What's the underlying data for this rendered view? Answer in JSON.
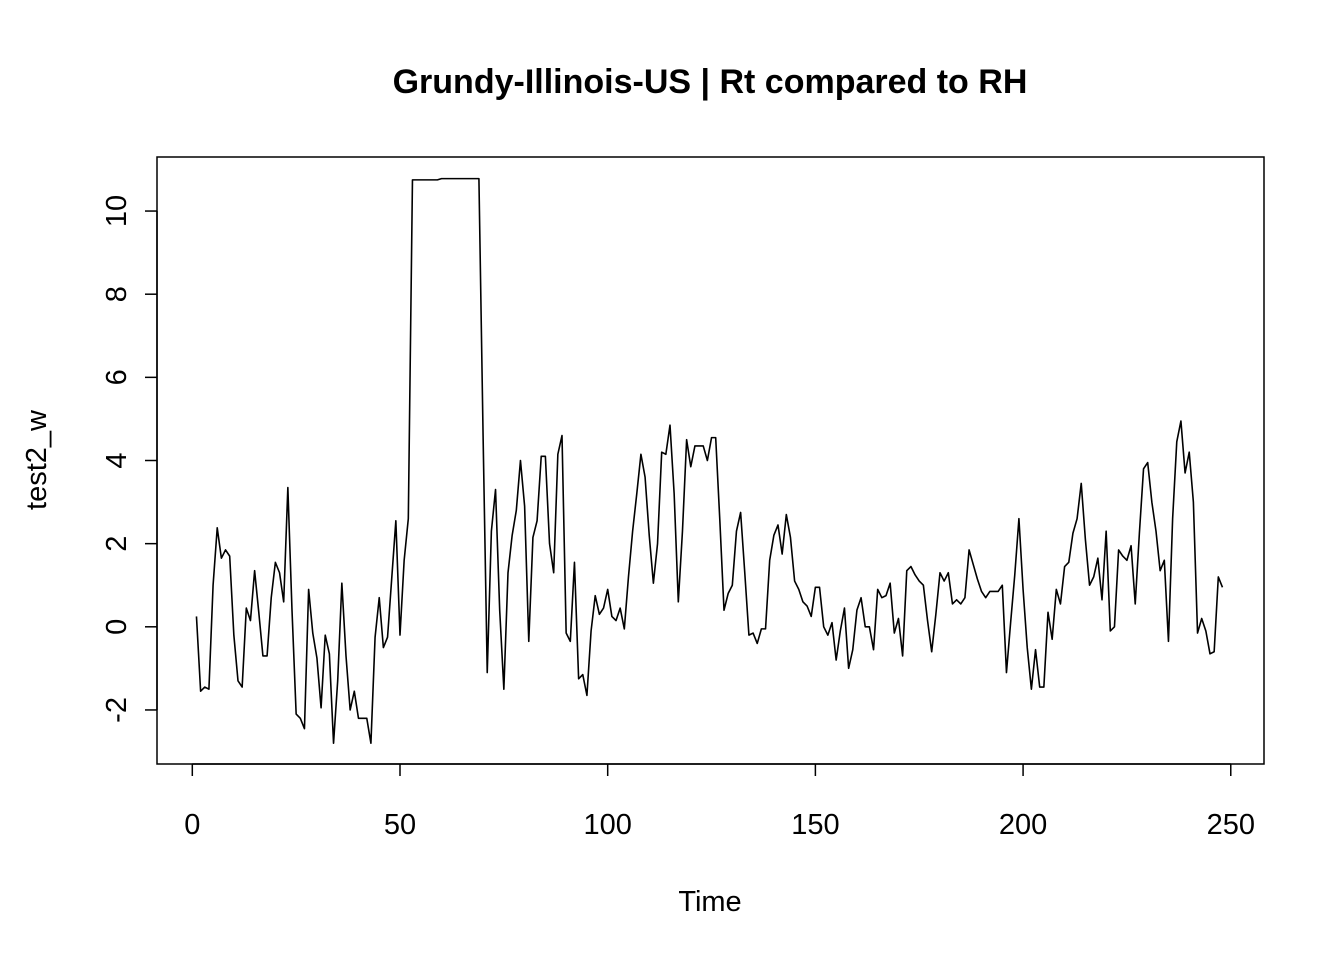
{
  "chart_data": {
    "type": "line",
    "title": "Grundy-Illinois-US | Rt compared to RH",
    "xlabel": "Time",
    "ylabel": "test2_w",
    "xlim": [
      -8.5,
      258
    ],
    "ylim": [
      -3.3,
      11.3
    ],
    "x_ticks": [
      0,
      50,
      100,
      150,
      200,
      250
    ],
    "y_ticks": [
      -2,
      0,
      2,
      4,
      6,
      8,
      10
    ],
    "grid": false,
    "series": [
      {
        "color": "#000000",
        "x_start": 1,
        "values": [
          0.25,
          -1.55,
          -1.45,
          -1.5,
          1.0,
          2.38,
          1.65,
          1.85,
          1.7,
          -0.2,
          -1.3,
          -1.45,
          0.45,
          0.15,
          1.35,
          0.35,
          -0.7,
          -0.7,
          0.7,
          1.55,
          1.3,
          0.6,
          3.35,
          0.4,
          -2.1,
          -2.2,
          -2.45,
          0.9,
          -0.15,
          -0.75,
          -1.95,
          -0.2,
          -0.65,
          -2.8,
          -1.3,
          1.05,
          -0.7,
          -2.0,
          -1.55,
          -2.2,
          -2.2,
          -2.2,
          -2.8,
          -0.25,
          0.7,
          -0.5,
          -0.25,
          1.15,
          2.55,
          -0.2,
          1.6,
          2.6,
          10.75,
          10.75,
          10.75,
          10.75,
          10.75,
          10.75,
          10.75,
          10.78,
          10.78,
          10.78,
          10.78,
          10.78,
          10.78,
          10.78,
          10.78,
          10.78,
          10.78,
          4.6,
          -1.1,
          2.3,
          3.3,
          0.4,
          -1.5,
          1.3,
          2.2,
          2.8,
          4.0,
          2.9,
          -0.35,
          2.15,
          2.55,
          4.1,
          4.1,
          2.0,
          1.3,
          4.15,
          4.6,
          -0.15,
          -0.35,
          1.55,
          -1.25,
          -1.15,
          -1.65,
          -0.1,
          0.75,
          0.3,
          0.45,
          0.9,
          0.25,
          0.15,
          0.45,
          -0.05,
          1.2,
          2.3,
          3.2,
          4.15,
          3.6,
          2.2,
          1.05,
          2.0,
          4.2,
          4.15,
          4.85,
          3.2,
          0.6,
          2.3,
          4.5,
          3.85,
          4.35,
          4.35,
          4.35,
          4.0,
          4.55,
          4.55,
          2.55,
          0.4,
          0.8,
          1.0,
          2.3,
          2.75,
          1.3,
          -0.2,
          -0.15,
          -0.4,
          -0.05,
          -0.05,
          1.6,
          2.2,
          2.45,
          1.75,
          2.7,
          2.15,
          1.1,
          0.9,
          0.6,
          0.5,
          0.25,
          0.95,
          0.95,
          0.0,
          -0.2,
          0.1,
          -0.8,
          -0.1,
          0.45,
          -1.0,
          -0.55,
          0.4,
          0.7,
          0.0,
          0.0,
          -0.55,
          0.9,
          0.7,
          0.75,
          1.05,
          -0.15,
          0.2,
          -0.7,
          1.35,
          1.45,
          1.25,
          1.1,
          1.0,
          0.15,
          -0.6,
          0.3,
          1.3,
          1.1,
          1.3,
          0.55,
          0.65,
          0.55,
          0.7,
          1.85,
          1.5,
          1.15,
          0.85,
          0.7,
          0.85,
          0.85,
          0.85,
          1.0,
          -1.1,
          0.1,
          1.25,
          2.6,
          0.9,
          -0.5,
          -1.5,
          -0.55,
          -1.45,
          -1.45,
          0.35,
          -0.3,
          0.9,
          0.55,
          1.45,
          1.55,
          2.25,
          2.6,
          3.45,
          2.1,
          1.0,
          1.2,
          1.65,
          0.65,
          2.3,
          -0.1,
          0.0,
          1.85,
          1.7,
          1.6,
          1.95,
          0.55,
          2.25,
          3.8,
          3.95,
          3.0,
          2.3,
          1.35,
          1.6,
          -0.35,
          2.6,
          4.45,
          4.95,
          3.7,
          4.2,
          3.0,
          -0.15,
          0.2,
          -0.1,
          -0.65,
          -0.6,
          1.2,
          0.95
        ]
      }
    ]
  }
}
